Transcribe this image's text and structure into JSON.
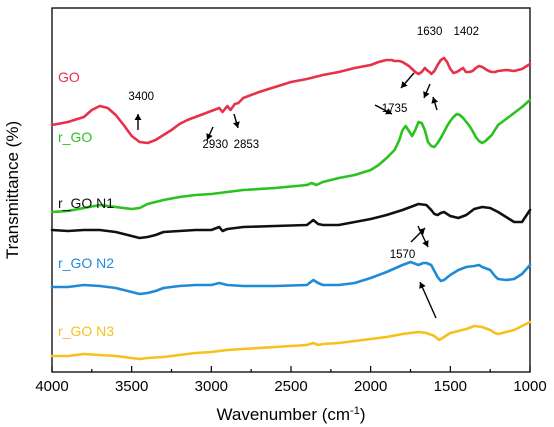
{
  "chart_data": {
    "type": "line",
    "xlabel": "Wavenumber (cm",
    "xlabel_sup": "-1",
    "xlabel_end": ")",
    "ylabel": "Transmittance (%)",
    "xlim": [
      4000,
      1000
    ],
    "x_reversed": true,
    "y_ticks_shown": false,
    "xticks": [
      4000,
      3500,
      3000,
      2500,
      2000,
      1500,
      1000
    ],
    "series": [
      {
        "name": "GO",
        "color": "#e8304a",
        "x": [
          4000,
          3900,
          3800,
          3750,
          3700,
          3650,
          3600,
          3550,
          3500,
          3450,
          3400,
          3350,
          3300,
          3250,
          3200,
          3150,
          3100,
          3050,
          3000,
          2950,
          2930,
          2900,
          2880,
          2853,
          2830,
          2800,
          2700,
          2600,
          2500,
          2400,
          2300,
          2200,
          2100,
          2000,
          1950,
          1900,
          1870,
          1850,
          1820,
          1800,
          1780,
          1760,
          1740,
          1720,
          1700,
          1680,
          1660,
          1640,
          1630,
          1620,
          1600,
          1580,
          1560,
          1540,
          1520,
          1500,
          1480,
          1460,
          1440,
          1420,
          1402,
          1380,
          1360,
          1340,
          1320,
          1300,
          1280,
          1260,
          1240,
          1220,
          1200,
          1150,
          1100,
          1050,
          1000
        ],
        "y": [
          125,
          122,
          117,
          110,
          106,
          108,
          115,
          125,
          136,
          142,
          143,
          140,
          135,
          130,
          124,
          120,
          117,
          114,
          111,
          108,
          112,
          106,
          110,
          104,
          103,
          98,
          92,
          87,
          82,
          79,
          75,
          72,
          68,
          65,
          62,
          60,
          60,
          61,
          61,
          62,
          64,
          66,
          69,
          72,
          74,
          72,
          68,
          71,
          72,
          74,
          71,
          65,
          60,
          58,
          62,
          69,
          73,
          72,
          70,
          68,
          72,
          72,
          71,
          68,
          66,
          67,
          69,
          71,
          72,
          72,
          71,
          70,
          71,
          69,
          64
        ]
      },
      {
        "name": "r_GO",
        "color": "#2ac21e",
        "x": [
          4000,
          3900,
          3800,
          3700,
          3600,
          3500,
          3450,
          3400,
          3300,
          3200,
          3100,
          3000,
          2900,
          2800,
          2600,
          2400,
          2370,
          2340,
          2300,
          2200,
          2100,
          2000,
          1950,
          1900,
          1850,
          1820,
          1800,
          1780,
          1760,
          1740,
          1720,
          1700,
          1680,
          1660,
          1640,
          1620,
          1600,
          1580,
          1560,
          1540,
          1520,
          1500,
          1480,
          1460,
          1440,
          1420,
          1400,
          1380,
          1360,
          1340,
          1320,
          1300,
          1280,
          1260,
          1240,
          1220,
          1200,
          1150,
          1100,
          1050,
          1000
        ],
        "y": [
          212,
          211,
          208,
          205,
          207,
          209,
          208,
          204,
          200,
          197,
          195,
          194,
          192,
          190,
          188,
          185,
          183,
          185,
          182,
          178,
          175,
          170,
          165,
          158,
          150,
          140,
          130,
          126,
          131,
          136,
          130,
          122,
          123,
          130,
          142,
          146,
          147,
          143,
          138,
          132,
          126,
          121,
          117,
          114,
          115,
          118,
          122,
          126,
          131,
          137,
          141,
          143,
          141,
          138,
          135,
          130,
          125,
          119,
          113,
          107,
          100
        ]
      },
      {
        "name": "r_GO N1",
        "color": "#111111",
        "x": [
          4000,
          3900,
          3800,
          3700,
          3600,
          3500,
          3450,
          3400,
          3350,
          3300,
          3200,
          3100,
          3000,
          2950,
          2930,
          2900,
          2800,
          2600,
          2400,
          2360,
          2330,
          2300,
          2200,
          2100,
          2000,
          1900,
          1800,
          1700,
          1650,
          1620,
          1600,
          1580,
          1560,
          1540,
          1500,
          1450,
          1400,
          1350,
          1300,
          1250,
          1200,
          1150,
          1100,
          1050,
          1000
        ],
        "y": [
          230,
          231,
          230,
          230,
          232,
          236,
          238,
          237,
          235,
          232,
          231,
          230,
          230,
          227,
          231,
          229,
          227,
          226,
          225,
          220,
          224,
          225,
          225,
          222,
          219,
          215,
          210,
          204,
          205,
          210,
          214,
          215,
          213,
          212,
          216,
          218,
          215,
          209,
          207,
          208,
          212,
          217,
          222,
          222,
          210
        ]
      },
      {
        "name": "r_GO N2",
        "color": "#1e8bd8",
        "x": [
          4000,
          3900,
          3800,
          3700,
          3600,
          3500,
          3450,
          3400,
          3350,
          3300,
          3200,
          3100,
          3000,
          2950,
          2900,
          2800,
          2600,
          2400,
          2360,
          2330,
          2300,
          2200,
          2100,
          2000,
          1900,
          1800,
          1750,
          1700,
          1670,
          1650,
          1620,
          1600,
          1580,
          1560,
          1540,
          1500,
          1450,
          1400,
          1350,
          1320,
          1300,
          1250,
          1220,
          1200,
          1150,
          1100,
          1050,
          1000
        ],
        "y": [
          287,
          287,
          285,
          286,
          288,
          292,
          294,
          293,
          291,
          288,
          286,
          285,
          285,
          283,
          285,
          286,
          286,
          285,
          280,
          283,
          285,
          285,
          283,
          278,
          272,
          265,
          262,
          265,
          263,
          263,
          265,
          271,
          277,
          281,
          280,
          275,
          270,
          267,
          266,
          265,
          267,
          270,
          276,
          279,
          280,
          279,
          274,
          265
        ]
      },
      {
        "name": "r_GO N3",
        "color": "#f5c21c",
        "x": [
          4000,
          3900,
          3800,
          3700,
          3600,
          3500,
          3450,
          3400,
          3300,
          3200,
          3100,
          3000,
          2900,
          2800,
          2600,
          2400,
          2360,
          2330,
          2300,
          2200,
          2100,
          2000,
          1900,
          1800,
          1700,
          1650,
          1600,
          1570,
          1550,
          1520,
          1500,
          1450,
          1400,
          1350,
          1300,
          1250,
          1220,
          1200,
          1150,
          1100,
          1050,
          1000
        ],
        "y": [
          356,
          356,
          354,
          355,
          356,
          358,
          359,
          358,
          357,
          355,
          353,
          352,
          350,
          349,
          347,
          345,
          343,
          345,
          344,
          343,
          341,
          339,
          337,
          334,
          332,
          333,
          336,
          340,
          338,
          335,
          333,
          331,
          329,
          326,
          327,
          330,
          333,
          334,
          332,
          330,
          326,
          322
        ]
      }
    ],
    "annotations": [
      {
        "text": "3400",
        "x": 3440
      },
      {
        "text": "2930",
        "x": 2975
      },
      {
        "text": "2853",
        "x": 2780
      },
      {
        "text": "1735",
        "x": 1850
      },
      {
        "text": "1630",
        "x": 1630
      },
      {
        "text": "1402",
        "x": 1400
      },
      {
        "text": "1570",
        "x": 1800
      }
    ]
  }
}
